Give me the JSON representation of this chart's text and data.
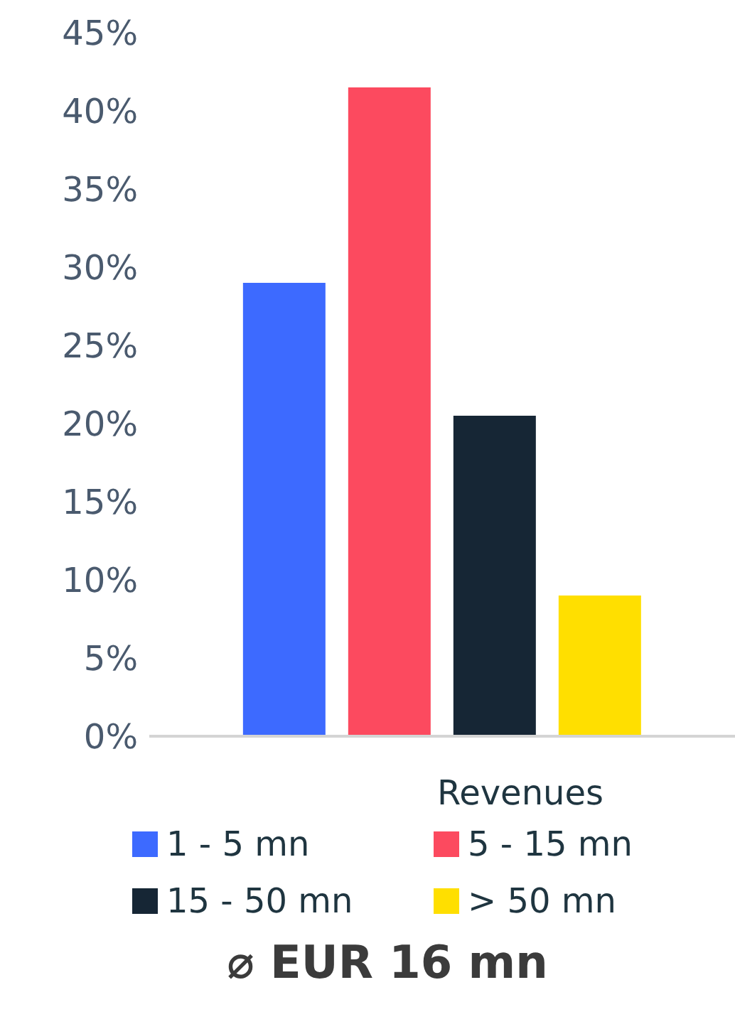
{
  "chart_data": {
    "type": "bar",
    "xlabel": "Revenues",
    "categories": [
      null
    ],
    "series": [
      {
        "name": "1 - 5 mn",
        "color": "#3d6aff",
        "values": [
          29
        ]
      },
      {
        "name": "5 - 15 mn",
        "color": "#fc4a5f",
        "values": [
          41.5
        ]
      },
      {
        "name": "15 - 50 mn",
        "color": "#162635",
        "values": [
          20.5
        ]
      },
      {
        "name": "> 50 mn",
        "color": "#ffdf00",
        "values": [
          9
        ]
      }
    ],
    "ylim": [
      0,
      45
    ],
    "yticks": [
      {
        "value": 0,
        "label": "0%"
      },
      {
        "value": 5,
        "label": "5%"
      },
      {
        "value": 10,
        "label": "10%"
      },
      {
        "value": 15,
        "label": "15%"
      },
      {
        "value": 20,
        "label": "20%"
      },
      {
        "value": 25,
        "label": "25%"
      },
      {
        "value": 30,
        "label": "30%"
      },
      {
        "value": 35,
        "label": "35%"
      },
      {
        "value": 40,
        "label": "40%"
      },
      {
        "value": 45,
        "label": "45%"
      }
    ],
    "grid": false,
    "legend": "bottom",
    "annotations": [
      "⌀ EUR 16 mn"
    ]
  }
}
